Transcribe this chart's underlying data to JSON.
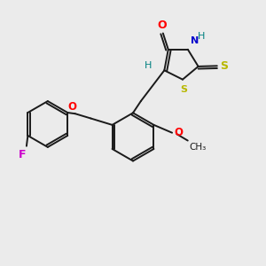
{
  "bg_color": "#ebebeb",
  "bond_color": "#1a1a1a",
  "atom_colors": {
    "O": "#ff0000",
    "N": "#0000cc",
    "S": "#b8b800",
    "F": "#cc00cc",
    "H": "#008080",
    "C": "#1a1a1a"
  },
  "figsize": [
    3.0,
    3.0
  ],
  "dpi": 100,
  "xlim": [
    0,
    10
  ],
  "ylim": [
    0,
    10
  ]
}
